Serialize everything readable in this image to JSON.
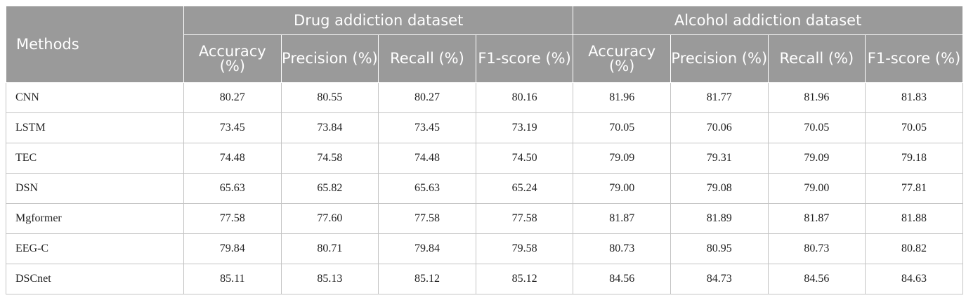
{
  "table": {
    "methods_header": "Methods",
    "groups": [
      {
        "label": "Drug addiction dataset",
        "metrics": [
          "Accuracy (%)",
          "Precision (%)",
          "Recall (%)",
          "F1-score (%)"
        ]
      },
      {
        "label": "Alcohol addiction dataset",
        "metrics": [
          "Accuracy (%)",
          "Precision (%)",
          "Recall (%)",
          "F1-score (%)"
        ]
      }
    ],
    "rows": [
      {
        "method": "CNN",
        "values": [
          "80.27",
          "80.55",
          "80.27",
          "80.16",
          "81.96",
          "81.77",
          "81.96",
          "81.83"
        ]
      },
      {
        "method": "LSTM",
        "values": [
          "73.45",
          "73.84",
          "73.45",
          "73.19",
          "70.05",
          "70.06",
          "70.05",
          "70.05"
        ]
      },
      {
        "method": "TEC",
        "values": [
          "74.48",
          "74.58",
          "74.48",
          "74.50",
          "79.09",
          "79.31",
          "79.09",
          "79.18"
        ]
      },
      {
        "method": "DSN",
        "values": [
          "65.63",
          "65.82",
          "65.63",
          "65.24",
          "79.00",
          "79.08",
          "79.00",
          "77.81"
        ]
      },
      {
        "method": "Mgformer",
        "values": [
          "77.58",
          "77.60",
          "77.58",
          "77.58",
          "81.87",
          "81.89",
          "81.87",
          "81.88"
        ]
      },
      {
        "method": "EEG-C",
        "values": [
          "79.84",
          "80.71",
          "79.84",
          "79.58",
          "80.73",
          "80.95",
          "80.73",
          "80.82"
        ]
      },
      {
        "method": "DSCnet",
        "values": [
          "85.11",
          "85.13",
          "85.12",
          "85.12",
          "84.56",
          "84.73",
          "84.56",
          "84.63"
        ]
      }
    ]
  }
}
